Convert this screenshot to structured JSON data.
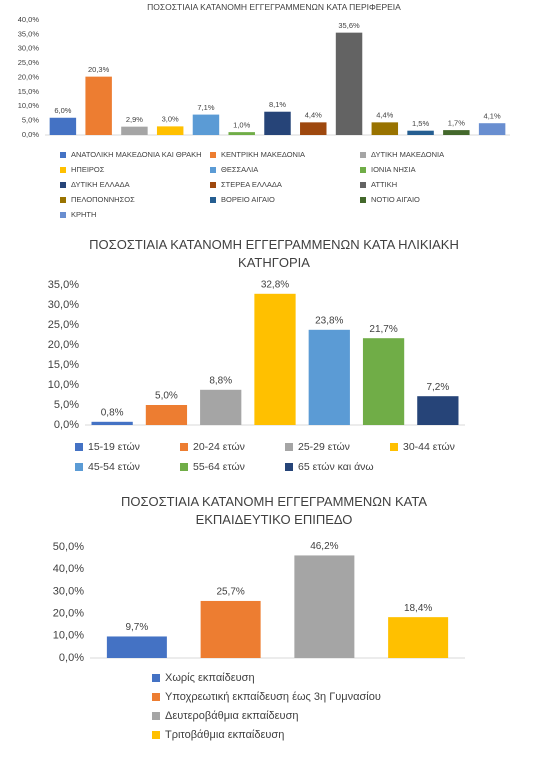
{
  "chart_data": [
    {
      "type": "bar",
      "title": "ΠΟΣΟΣΤΙΑΙΑ ΚΑΤΑΝΟΜΗ ΕΓΓΕΓΡΑΜΜΕΝΩΝ ΚΑΤΑ ΠΕΡΙΦΕΡΕΙΑ",
      "categories": [
        null
      ],
      "series": [
        {
          "name": "ΑΝΑΤΟΛΙΚΗ ΜΑΚΕΔΟΝΙΑ ΚΑΙ ΘΡΑΚΗ",
          "color": "#4472c4",
          "values": [
            6.0
          ],
          "value_labels": [
            "6,0%"
          ]
        },
        {
          "name": "ΚΕΝΤΡΙΚΗ ΜΑΚΕΔΟΝΙΑ",
          "color": "#ed7d31",
          "values": [
            20.3
          ],
          "value_labels": [
            "20,3%"
          ]
        },
        {
          "name": "ΔΥΤΙΚΗ ΜΑΚΕΔΟΝΙΑ",
          "color": "#a5a5a5",
          "values": [
            2.9
          ],
          "value_labels": [
            "2,9%"
          ]
        },
        {
          "name": "ΗΠΕΙΡΟΣ",
          "color": "#ffc000",
          "values": [
            3.0
          ],
          "value_labels": [
            "3,0%"
          ]
        },
        {
          "name": "ΘΕΣΣΑΛΙΑ",
          "color": "#5b9bd5",
          "values": [
            7.1
          ],
          "value_labels": [
            "7,1%"
          ]
        },
        {
          "name": "ΙΟΝΙΑ ΝΗΣΙΑ",
          "color": "#70ad47",
          "values": [
            1.0
          ],
          "value_labels": [
            "1,0%"
          ]
        },
        {
          "name": "ΔΥΤΙΚΗ ΕΛΛΑΔΑ",
          "color": "#264478",
          "values": [
            8.1
          ],
          "value_labels": [
            "8,1%"
          ]
        },
        {
          "name": "ΣΤΕΡΕΑ ΕΛΛΑΔΑ",
          "color": "#9e480e",
          "values": [
            4.4
          ],
          "value_labels": [
            "4,4%"
          ]
        },
        {
          "name": "ΑΤΤΙΚΗ",
          "color": "#636363",
          "values": [
            35.6
          ],
          "value_labels": [
            "35,6%"
          ]
        },
        {
          "name": "ΠΕΛΟΠΟΝΝΗΣΟΣ",
          "color": "#997300",
          "values": [
            4.4
          ],
          "value_labels": [
            "4,4%"
          ]
        },
        {
          "name": "ΒΟΡΕΙΟ ΑΙΓΑΙΟ",
          "color": "#255e91",
          "values": [
            1.5
          ],
          "value_labels": [
            "1,5%"
          ]
        },
        {
          "name": "ΝΟΤΙΟ ΑΙΓΑΙΟ",
          "color": "#43682b",
          "values": [
            1.7
          ],
          "value_labels": [
            "1,7%"
          ]
        },
        {
          "name": "ΚΡΗΤΗ",
          "color": "#698ed0",
          "values": [
            4.1
          ],
          "value_labels": [
            "4,1%"
          ]
        }
      ],
      "ylim": [
        0,
        40
      ],
      "yticks": [
        {
          "value": 0,
          "label": "0,0%"
        },
        {
          "value": 5,
          "label": "5,0%"
        },
        {
          "value": 10,
          "label": "10,0%"
        },
        {
          "value": 15,
          "label": "15,0%"
        },
        {
          "value": 20,
          "label": "20,0%"
        },
        {
          "value": 25,
          "label": "25,0%"
        },
        {
          "value": 30,
          "label": "30,0%"
        },
        {
          "value": 35,
          "label": "35,0%"
        },
        {
          "value": 40,
          "label": "40,0%"
        }
      ],
      "grid": false,
      "legend": "bottom"
    },
    {
      "type": "bar",
      "title": "ΠΟΣΟΣΤΙΑΙΑ ΚΑΤΑΝΟΜΗ ΕΓΓΕΓΡΑΜΜΕΝΩΝ  ΚΑΤΑ ΗΛΙΚΙΑΚΗ ΚΑΤΗΓΟΡΙΑ",
      "categories": [
        null
      ],
      "series": [
        {
          "name": "15-19 ετών",
          "color": "#4472c4",
          "values": [
            0.8
          ],
          "value_labels": [
            "0,8%"
          ]
        },
        {
          "name": "20-24 ετών",
          "color": "#ed7d31",
          "values": [
            5.0
          ],
          "value_labels": [
            "5,0%"
          ]
        },
        {
          "name": "25-29 ετών",
          "color": "#a5a5a5",
          "values": [
            8.8
          ],
          "value_labels": [
            "8,8%"
          ]
        },
        {
          "name": "30-44 ετών",
          "color": "#ffc000",
          "values": [
            32.8
          ],
          "value_labels": [
            "32,8%"
          ]
        },
        {
          "name": "45-54 ετών",
          "color": "#5b9bd5",
          "values": [
            23.8
          ],
          "value_labels": [
            "23,8%"
          ]
        },
        {
          "name": "55-64 ετών",
          "color": "#70ad47",
          "values": [
            21.7
          ],
          "value_labels": [
            "21,7%"
          ]
        },
        {
          "name": "65 ετών και άνω",
          "color": "#264478",
          "values": [
            7.2
          ],
          "value_labels": [
            "7,2%"
          ]
        }
      ],
      "ylim": [
        0,
        35
      ],
      "yticks": [
        {
          "value": 0,
          "label": "0,0%"
        },
        {
          "value": 5,
          "label": "5,0%"
        },
        {
          "value": 10,
          "label": "10,0%"
        },
        {
          "value": 15,
          "label": "15,0%"
        },
        {
          "value": 20,
          "label": "20,0%"
        },
        {
          "value": 25,
          "label": "25,0%"
        },
        {
          "value": 30,
          "label": "30,0%"
        },
        {
          "value": 35,
          "label": "35,0%"
        }
      ],
      "grid": false,
      "legend": "bottom"
    },
    {
      "type": "bar",
      "title": "ΠΟΣΟΣΤΙΑΙΑ ΚΑΤΑΝΟΜΗ ΕΓΓΕΓΡΑΜΜΕΝΩΝ ΚΑΤΑ ΕΚΠΑΙΔΕΥΤΙΚΟ ΕΠΙΠΕΔΟ",
      "categories": [
        null
      ],
      "series": [
        {
          "name": "Χωρίς εκπαίδευση",
          "color": "#4472c4",
          "values": [
            9.7
          ],
          "value_labels": [
            "9,7%"
          ]
        },
        {
          "name": "Υποχρεωτική εκπαίδευση έως 3η Γυμνασίου",
          "color": "#ed7d31",
          "values": [
            25.7
          ],
          "value_labels": [
            "25,7%"
          ]
        },
        {
          "name": "Δευτεροβάθμια εκπαίδευση",
          "color": "#a5a5a5",
          "values": [
            46.2
          ],
          "value_labels": [
            "46,2%"
          ]
        },
        {
          "name": "Τριτοβάθμια εκπαίδευση",
          "color": "#ffc000",
          "values": [
            18.4
          ],
          "value_labels": [
            "18,4%"
          ]
        }
      ],
      "ylim": [
        0,
        50
      ],
      "yticks": [
        {
          "value": 0,
          "label": "0,0%"
        },
        {
          "value": 10,
          "label": "10,0%"
        },
        {
          "value": 20,
          "label": "20,0%"
        },
        {
          "value": 30,
          "label": "30,0%"
        },
        {
          "value": 40,
          "label": "40,0%"
        },
        {
          "value": 50,
          "label": "50,0%"
        }
      ],
      "grid": false,
      "legend": "bottom"
    }
  ]
}
